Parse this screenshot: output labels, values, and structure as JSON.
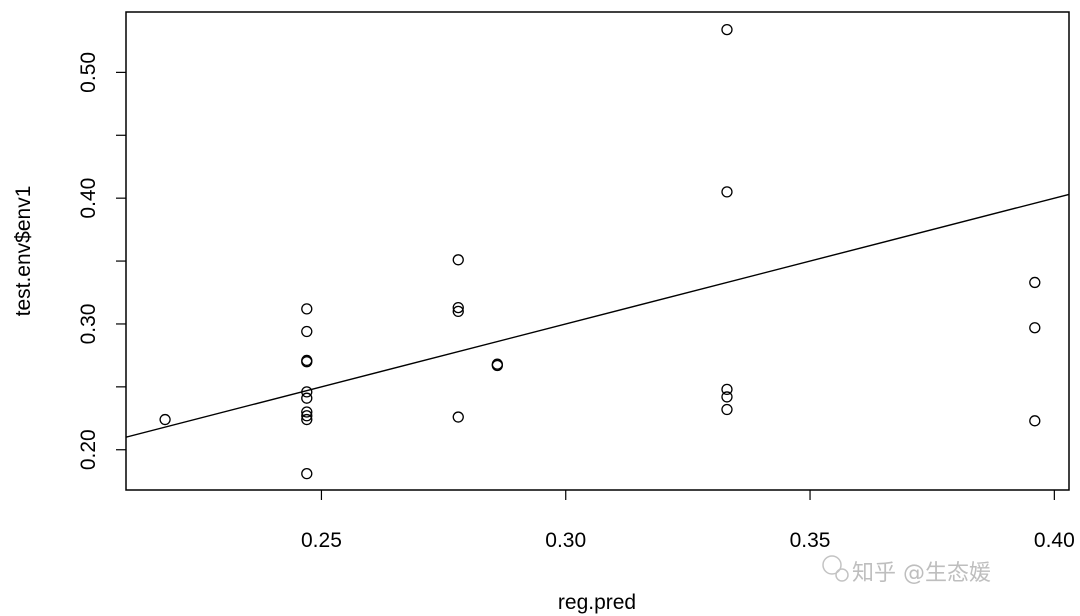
{
  "chart_data": {
    "type": "scatter",
    "title": "",
    "xlabel": "reg.pred",
    "ylabel": "test.env$env1",
    "xlim": [
      0.21,
      0.403
    ],
    "ylim": [
      0.168,
      0.548
    ],
    "x_ticks": [
      0.25,
      0.3,
      0.35,
      0.4
    ],
    "x_tick_labels": [
      "0.25",
      "0.30",
      "0.35",
      "0.40"
    ],
    "y_ticks": [
      0.2,
      0.25,
      0.3,
      0.35,
      0.4,
      0.45,
      0.5
    ],
    "y_tick_labels": [
      "0.20",
      "",
      "0.30",
      "",
      "0.40",
      "",
      "0.50"
    ],
    "grid": false,
    "points": [
      {
        "x": 0.218,
        "y": 0.224
      },
      {
        "x": 0.247,
        "y": 0.312
      },
      {
        "x": 0.247,
        "y": 0.294
      },
      {
        "x": 0.247,
        "y": 0.271
      },
      {
        "x": 0.247,
        "y": 0.27
      },
      {
        "x": 0.247,
        "y": 0.246
      },
      {
        "x": 0.247,
        "y": 0.241
      },
      {
        "x": 0.247,
        "y": 0.23
      },
      {
        "x": 0.247,
        "y": 0.227
      },
      {
        "x": 0.247,
        "y": 0.224
      },
      {
        "x": 0.247,
        "y": 0.181
      },
      {
        "x": 0.278,
        "y": 0.351
      },
      {
        "x": 0.278,
        "y": 0.313
      },
      {
        "x": 0.278,
        "y": 0.31
      },
      {
        "x": 0.278,
        "y": 0.226
      },
      {
        "x": 0.286,
        "y": 0.267
      },
      {
        "x": 0.286,
        "y": 0.268
      },
      {
        "x": 0.333,
        "y": 0.534
      },
      {
        "x": 0.333,
        "y": 0.405
      },
      {
        "x": 0.333,
        "y": 0.248
      },
      {
        "x": 0.333,
        "y": 0.242
      },
      {
        "x": 0.333,
        "y": 0.232
      },
      {
        "x": 0.396,
        "y": 0.333
      },
      {
        "x": 0.396,
        "y": 0.297
      },
      {
        "x": 0.396,
        "y": 0.223
      }
    ],
    "regression_line": {
      "intercept": 0.0,
      "slope": 1.0
    }
  },
  "watermark": {
    "text": "知乎 @生态媛"
  }
}
